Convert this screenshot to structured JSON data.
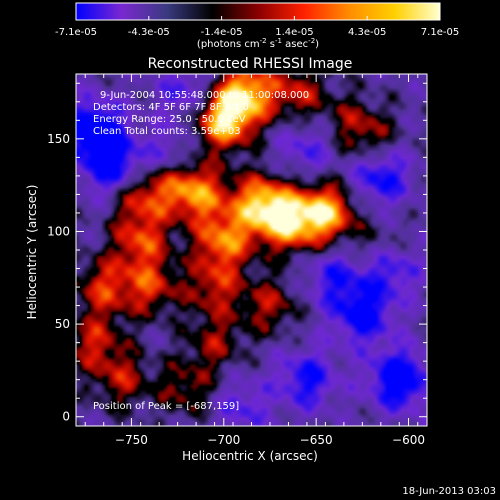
{
  "chart_data": {
    "type": "heatmap",
    "colorbar": {
      "tick_labels": [
        "-7.1e-05",
        "-4.3e-05",
        "-1.4e-05",
        "1.4e-05",
        "4.3e-05",
        "7.1e-05"
      ],
      "range": [
        -7.1e-05,
        7.1e-05
      ],
      "unit_main": "(photons cm",
      "unit_exp1": "-2",
      "unit_mid": " s",
      "unit_exp2": "-1",
      "unit_tail": " asec",
      "unit_exp3": "-2",
      "unit_close": ")",
      "colors": [
        "#0000ff",
        "#7a28d0",
        "#3a3a80",
        "#000000",
        "#8a0000",
        "#ff2000",
        "#ff8c00",
        "#ffd000",
        "#ffffd0"
      ]
    },
    "title": "Reconstructed RHESSI Image",
    "xlabel": "Heliocentric X (arcsec)",
    "ylabel": "Heliocentric Y (arcsec)",
    "xlim": [
      -780,
      -590
    ],
    "ylim": [
      -5,
      185
    ],
    "x_ticks": [
      {
        "value": -750,
        "label": "−750"
      },
      {
        "value": -700,
        "label": "−700"
      },
      {
        "value": -650,
        "label": "−650"
      },
      {
        "value": -600,
        "label": "−600"
      }
    ],
    "y_ticks": [
      {
        "value": 0,
        "label": "0"
      },
      {
        "value": 50,
        "label": "50"
      },
      {
        "value": 100,
        "label": "100"
      },
      {
        "value": 150,
        "label": "150"
      }
    ],
    "annotations": [
      "9-Jun-2004 10:55:48.000 to 11:00:08.000",
      "Detectors: 4F 5F 6F 7F 8F  Att 0",
      "Energy Range: 25.0 - 50.0 keV",
      "Clean      Total counts: 3.59e+03"
    ],
    "peak_label": "Position of Peak = [-687,159]",
    "peak": [
      -687,
      159
    ],
    "hot_spots": [
      {
        "x": -700,
        "y": 160,
        "v": 1.0
      },
      {
        "x": -688,
        "y": 175,
        "v": 0.9
      },
      {
        "x": -680,
        "y": 115,
        "v": 0.9
      },
      {
        "x": -665,
        "y": 105,
        "v": 0.85
      },
      {
        "x": -645,
        "y": 110,
        "v": 0.95
      },
      {
        "x": -700,
        "y": 95,
        "v": 0.75
      },
      {
        "x": -712,
        "y": 120,
        "v": 0.6
      },
      {
        "x": -745,
        "y": 120,
        "v": 0.55
      },
      {
        "x": -725,
        "y": 125,
        "v": 0.5
      },
      {
        "x": -745,
        "y": 95,
        "v": 0.6
      },
      {
        "x": -765,
        "y": 70,
        "v": 0.55
      },
      {
        "x": -740,
        "y": 70,
        "v": 0.55
      },
      {
        "x": -705,
        "y": 70,
        "v": 0.5
      },
      {
        "x": -675,
        "y": 60,
        "v": 0.45
      },
      {
        "x": -770,
        "y": 40,
        "v": 0.5
      },
      {
        "x": -755,
        "y": 20,
        "v": 0.45
      },
      {
        "x": -720,
        "y": 15,
        "v": 0.4
      },
      {
        "x": -705,
        "y": 40,
        "v": 0.4
      },
      {
        "x": -660,
        "y": 175,
        "v": 0.5
      },
      {
        "x": -620,
        "y": 150,
        "v": 0.35
      },
      {
        "x": -615,
        "y": 90,
        "v": 0.3
      },
      {
        "x": -632,
        "y": 160,
        "v": 0.3
      }
    ],
    "cold_spots": [
      {
        "x": -770,
        "y": 155,
        "v": -0.8
      },
      {
        "x": -760,
        "y": 135,
        "v": -0.7
      },
      {
        "x": -615,
        "y": 130,
        "v": -0.6
      },
      {
        "x": -605,
        "y": 20,
        "v": -0.8
      },
      {
        "x": -625,
        "y": 55,
        "v": -0.65
      },
      {
        "x": -655,
        "y": 20,
        "v": -0.55
      },
      {
        "x": -610,
        "y": 80,
        "v": -0.55
      },
      {
        "x": -640,
        "y": 75,
        "v": -0.45
      },
      {
        "x": -690,
        "y": 5,
        "v": -0.35
      },
      {
        "x": -730,
        "y": 140,
        "v": -0.35
      },
      {
        "x": -720,
        "y": 175,
        "v": -0.4
      },
      {
        "x": -655,
        "y": 145,
        "v": -0.35
      }
    ]
  },
  "footer": {
    "timestamp": "18-Jun-2013 03:03"
  }
}
